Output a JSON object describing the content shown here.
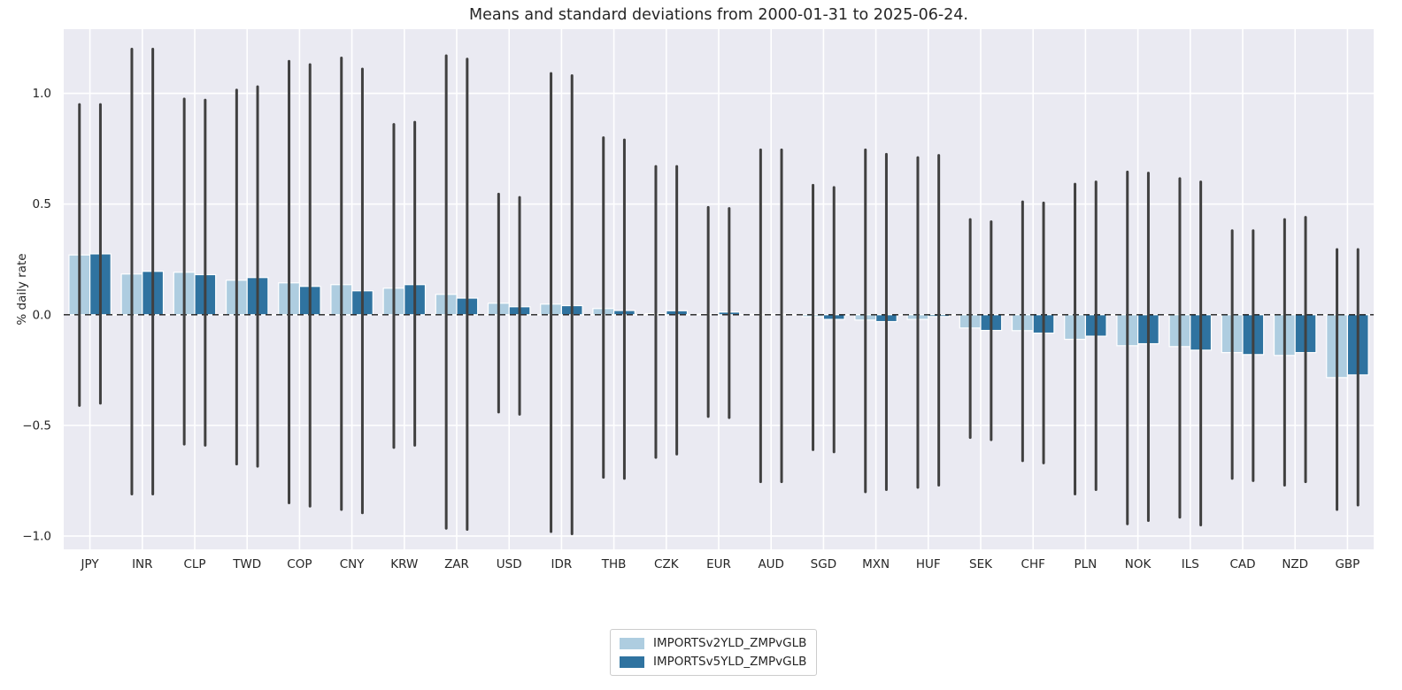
{
  "page": {
    "background": "#ffffff"
  },
  "chart_data": {
    "type": "bar",
    "title": "Means and standard deviations from 2000-01-31 to 2025-06-24.",
    "xlabel": "",
    "ylabel": "% daily rate",
    "ylim": [
      -1.06,
      1.29
    ],
    "yticks": [
      1.0,
      0.5,
      0.0,
      -0.5,
      -1.0
    ],
    "ytick_labels": [
      "1.0",
      "0.5",
      "0.0",
      "−0.5",
      "−1.0"
    ],
    "grid": true,
    "zero_line_dashed": true,
    "legend_position": "bottom-center",
    "plot_bg": "#eaeaf2",
    "grid_color": "#ffffff",
    "error_bar_color": "#404040",
    "text_color": "#262626",
    "categories": [
      "JPY",
      "INR",
      "CLP",
      "TWD",
      "COP",
      "CNY",
      "KRW",
      "ZAR",
      "USD",
      "IDR",
      "THB",
      "CZK",
      "EUR",
      "AUD",
      "SGD",
      "MXN",
      "HUF",
      "SEK",
      "CHF",
      "PLN",
      "NOK",
      "ILS",
      "CAD",
      "NZD",
      "GBP"
    ],
    "series": [
      {
        "name": "IMPORTSv2YLD_ZMPvGLB",
        "color": "#aecde0",
        "means": [
          0.27,
          0.184,
          0.192,
          0.156,
          0.144,
          0.136,
          0.12,
          0.092,
          0.052,
          0.048,
          0.028,
          0.005,
          0.003,
          0.002,
          -0.009,
          -0.024,
          -0.021,
          -0.06,
          -0.072,
          -0.111,
          -0.14,
          -0.144,
          -0.171,
          -0.184,
          -0.284
        ],
        "err_high": [
          0.95,
          1.2,
          0.975,
          1.015,
          1.145,
          1.16,
          0.86,
          1.17,
          0.545,
          1.09,
          0.8,
          0.67,
          0.485,
          0.745,
          0.585,
          0.745,
          0.71,
          0.43,
          0.51,
          0.59,
          0.645,
          0.615,
          0.38,
          0.43,
          0.295
        ],
        "err_low": [
          -0.41,
          -0.81,
          -0.585,
          -0.675,
          -0.85,
          -0.88,
          -0.6,
          -0.965,
          -0.44,
          -0.98,
          -0.735,
          -0.645,
          -0.46,
          -0.755,
          -0.61,
          -0.8,
          -0.78,
          -0.555,
          -0.66,
          -0.81,
          -0.945,
          -0.915,
          -0.74,
          -0.77,
          -0.88
        ]
      },
      {
        "name": "IMPORTSv5YLD_ZMPvGLB",
        "color": "#2f73a0",
        "means": [
          0.275,
          0.196,
          0.181,
          0.168,
          0.128,
          0.108,
          0.136,
          0.075,
          0.036,
          0.041,
          0.019,
          0.018,
          0.012,
          0.003,
          -0.021,
          -0.031,
          -0.008,
          -0.071,
          -0.083,
          -0.097,
          -0.131,
          -0.16,
          -0.18,
          -0.171,
          -0.272
        ],
        "err_high": [
          0.95,
          1.2,
          0.97,
          1.03,
          1.13,
          1.11,
          0.87,
          1.155,
          0.53,
          1.08,
          0.79,
          0.67,
          0.48,
          0.745,
          0.575,
          0.725,
          0.72,
          0.42,
          0.505,
          0.6,
          0.64,
          0.6,
          0.38,
          0.44,
          0.295
        ],
        "err_low": [
          -0.4,
          -0.81,
          -0.59,
          -0.685,
          -0.865,
          -0.895,
          -0.59,
          -0.97,
          -0.45,
          -0.99,
          -0.74,
          -0.63,
          -0.465,
          -0.755,
          -0.62,
          -0.79,
          -0.77,
          -0.565,
          -0.67,
          -0.79,
          -0.93,
          -0.95,
          -0.75,
          -0.755,
          -0.86
        ]
      }
    ]
  }
}
